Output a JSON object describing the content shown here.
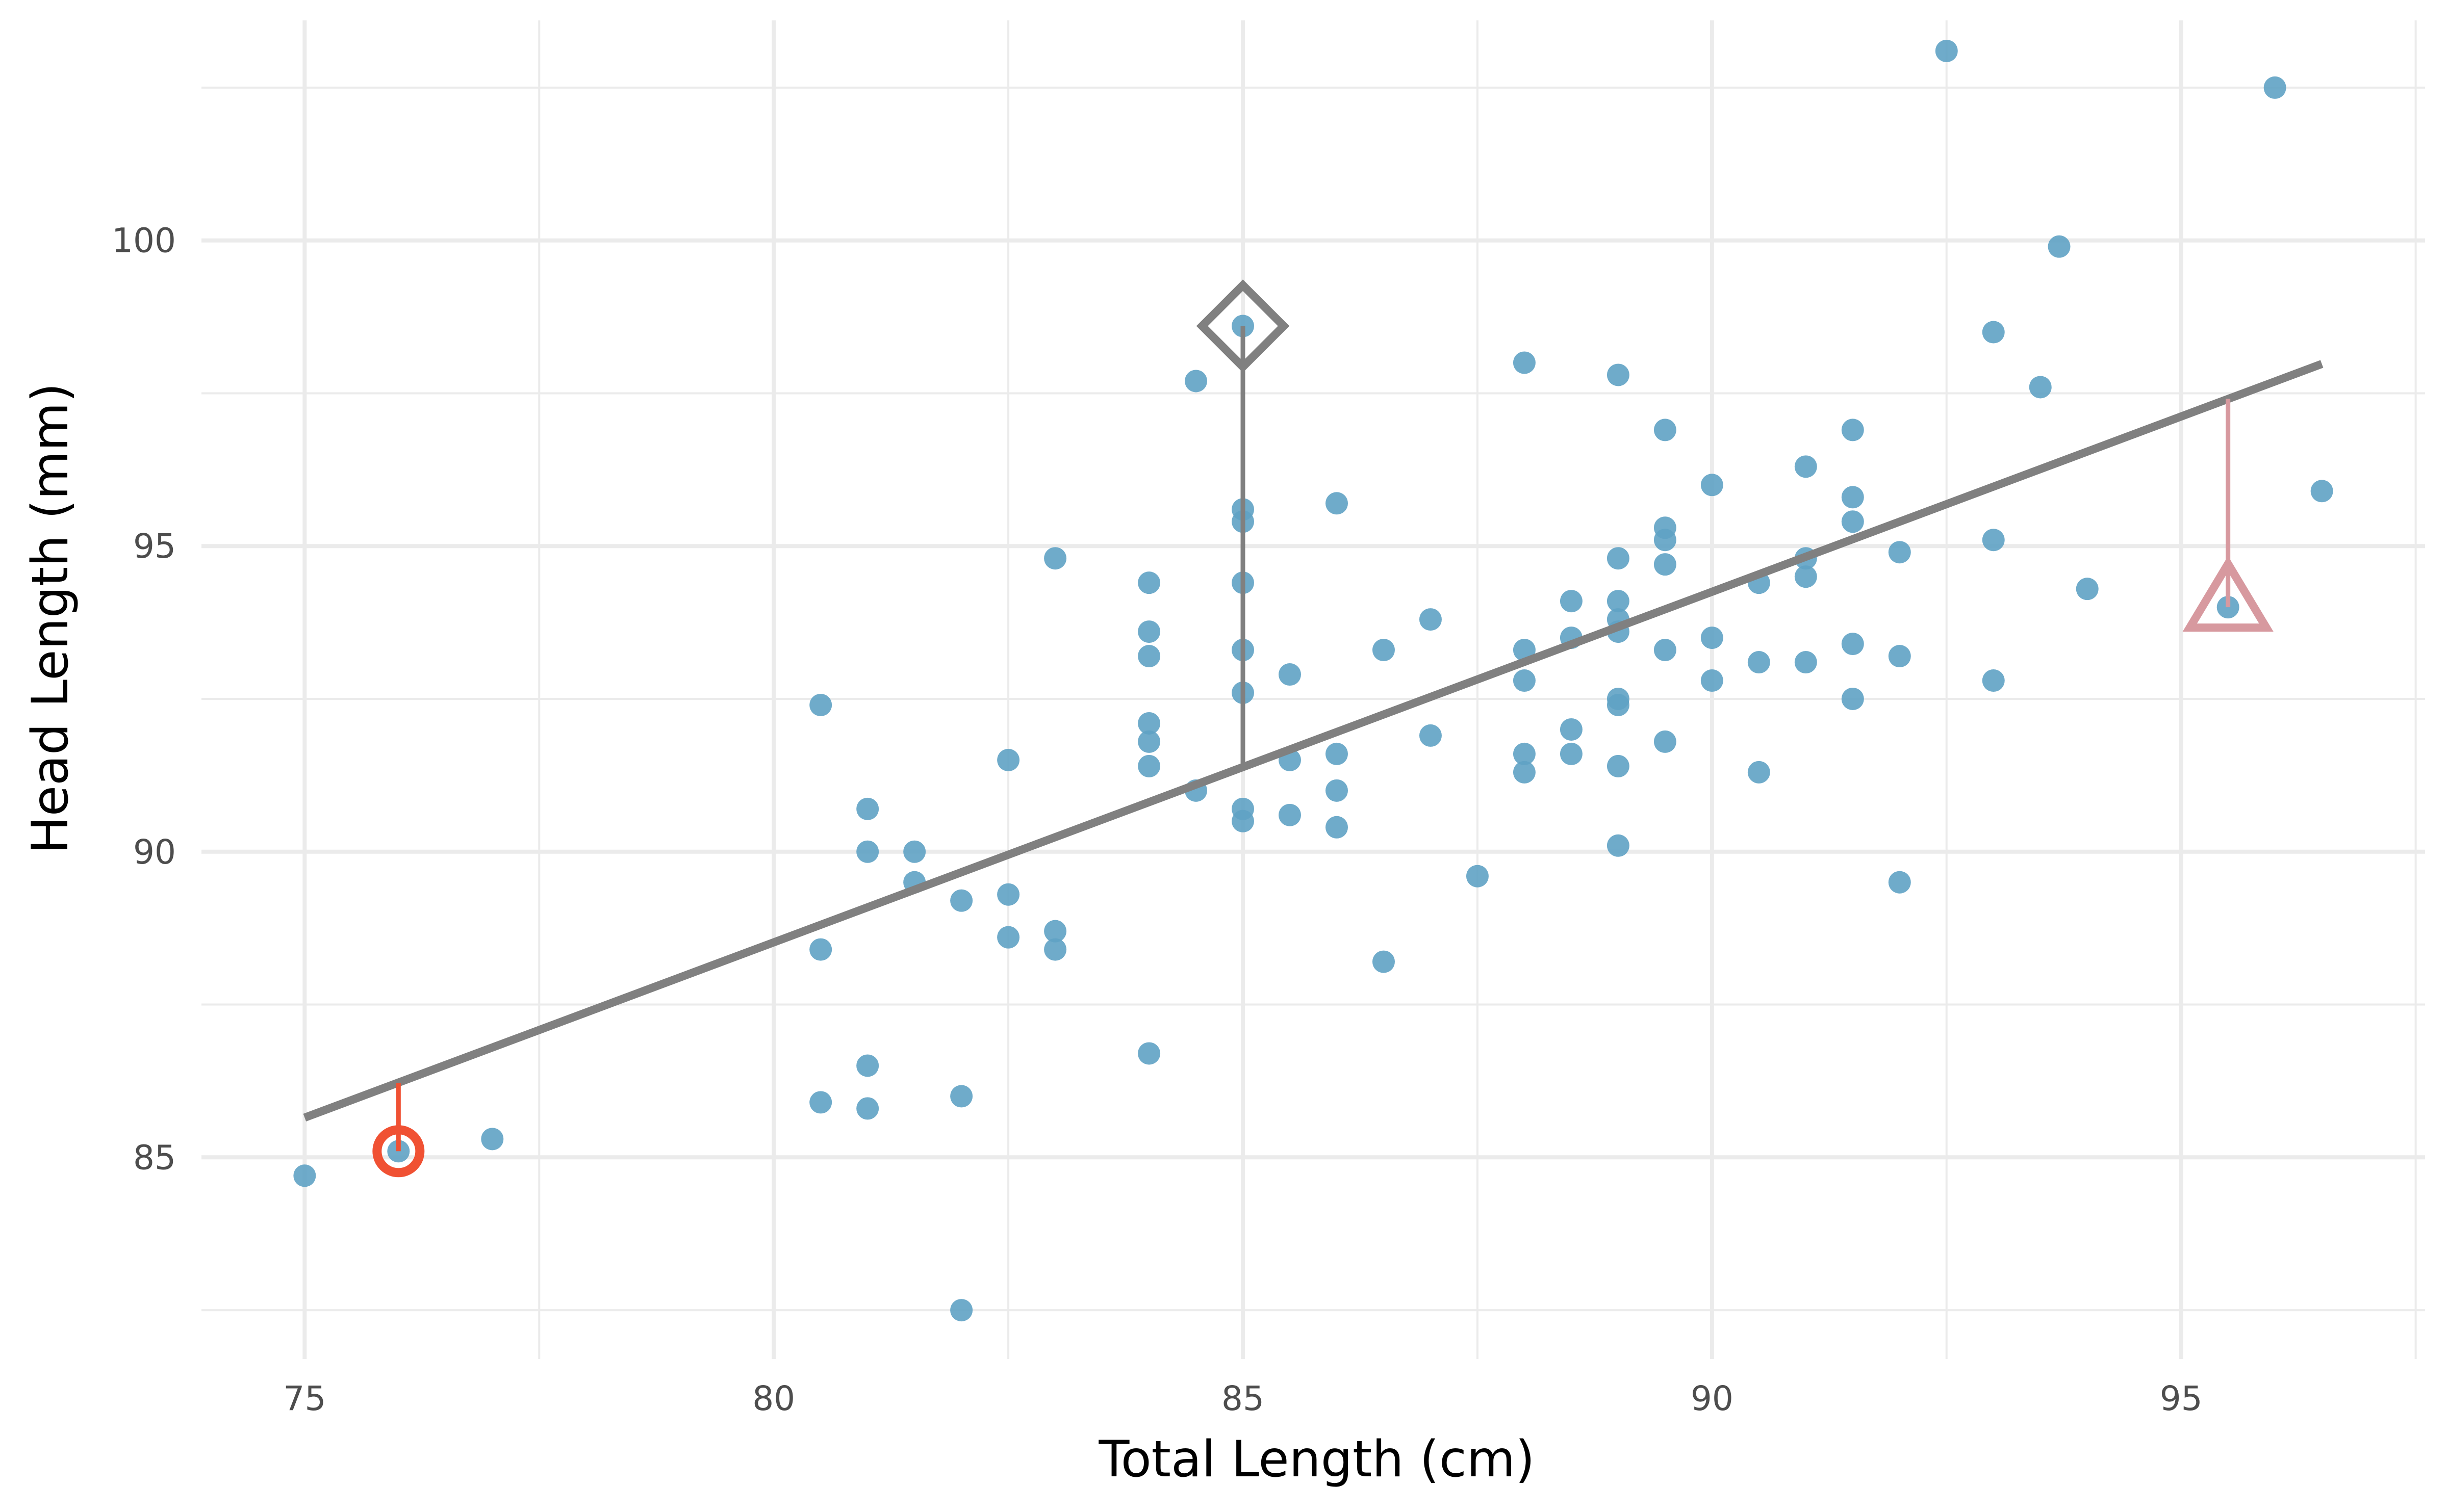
{
  "chart_data": {
    "type": "scatter",
    "title": "",
    "xlabel": "Total Length (cm)",
    "ylabel": "Head Length (mm)",
    "xlim": [
      73.9,
      97.6
    ],
    "ylim": [
      81.7,
      103.6
    ],
    "x_ticks": [
      75,
      80,
      85,
      90,
      95
    ],
    "x_minor_ticks": [
      77.5,
      82.5,
      87.5,
      92.5,
      97.5
    ],
    "y_ticks": [
      85,
      90,
      95,
      100
    ],
    "y_minor_ticks": [
      82.5,
      87.5,
      92.5,
      97.5,
      102.5
    ],
    "x_tick_labels": [
      "75",
      "80",
      "85",
      "90",
      "95"
    ],
    "y_tick_labels": [
      "85",
      "90",
      "95",
      "100"
    ],
    "grid": true,
    "legend": "none",
    "point_color": "#5fa2c4",
    "points": [
      [
        75,
        84.7
      ],
      [
        76,
        85.1
      ],
      [
        77,
        85.3
      ],
      [
        80.5,
        92.4
      ],
      [
        80.5,
        88.4
      ],
      [
        80.5,
        85.9
      ],
      [
        81,
        90.7
      ],
      [
        81,
        90.0
      ],
      [
        81,
        86.5
      ],
      [
        81,
        85.8
      ],
      [
        81.5,
        90.0
      ],
      [
        81.5,
        89.5
      ],
      [
        82,
        89.2
      ],
      [
        82,
        86.0
      ],
      [
        82,
        82.5
      ],
      [
        82.5,
        91.5
      ],
      [
        82.5,
        89.3
      ],
      [
        82.5,
        88.6
      ],
      [
        83,
        94.8
      ],
      [
        83,
        88.7
      ],
      [
        83,
        88.4
      ],
      [
        84,
        94.4
      ],
      [
        84,
        93.6
      ],
      [
        84,
        93.2
      ],
      [
        84,
        92.1
      ],
      [
        84,
        91.8
      ],
      [
        84,
        91.4
      ],
      [
        84,
        86.7
      ],
      [
        84.5,
        97.7
      ],
      [
        84.5,
        91.0
      ],
      [
        85,
        98.6
      ],
      [
        85,
        95.6
      ],
      [
        85,
        95.4
      ],
      [
        85,
        94.4
      ],
      [
        85,
        93.3
      ],
      [
        85,
        92.6
      ],
      [
        85,
        90.7
      ],
      [
        85,
        90.5
      ],
      [
        85.5,
        92.9
      ],
      [
        85.5,
        91.5
      ],
      [
        85.5,
        90.6
      ],
      [
        86,
        95.7
      ],
      [
        86,
        91.6
      ],
      [
        86,
        91.0
      ],
      [
        86,
        90.4
      ],
      [
        86.5,
        93.3
      ],
      [
        86.5,
        88.2
      ],
      [
        87,
        93.8
      ],
      [
        87,
        91.9
      ],
      [
        87.5,
        89.6
      ],
      [
        88,
        98.0
      ],
      [
        88,
        93.3
      ],
      [
        88,
        92.8
      ],
      [
        88,
        91.6
      ],
      [
        88,
        91.3
      ],
      [
        88.5,
        94.1
      ],
      [
        88.5,
        93.5
      ],
      [
        88.5,
        92.0
      ],
      [
        88.5,
        91.6
      ],
      [
        89,
        97.8
      ],
      [
        89,
        94.8
      ],
      [
        89,
        94.1
      ],
      [
        89,
        93.8
      ],
      [
        89,
        93.6
      ],
      [
        89,
        92.5
      ],
      [
        89,
        92.4
      ],
      [
        89,
        91.4
      ],
      [
        89,
        90.1
      ],
      [
        89.5,
        96.9
      ],
      [
        89.5,
        95.3
      ],
      [
        89.5,
        95.1
      ],
      [
        89.5,
        94.7
      ],
      [
        89.5,
        93.3
      ],
      [
        89.5,
        91.8
      ],
      [
        90,
        96.0
      ],
      [
        90,
        93.5
      ],
      [
        90,
        92.8
      ],
      [
        90.5,
        94.4
      ],
      [
        90.5,
        93.1
      ],
      [
        90.5,
        91.3
      ],
      [
        91,
        96.3
      ],
      [
        91,
        94.8
      ],
      [
        91,
        94.5
      ],
      [
        91,
        93.1
      ],
      [
        91.5,
        96.9
      ],
      [
        91.5,
        95.8
      ],
      [
        91.5,
        95.4
      ],
      [
        91.5,
        93.4
      ],
      [
        91.5,
        92.5
      ],
      [
        92,
        94.9
      ],
      [
        92,
        93.2
      ],
      [
        92,
        89.5
      ],
      [
        92.5,
        103.1
      ],
      [
        93,
        98.5
      ],
      [
        93,
        95.1
      ],
      [
        93,
        92.8
      ],
      [
        93.5,
        97.6
      ],
      [
        93.7,
        99.9
      ],
      [
        94,
        94.3
      ],
      [
        95.5,
        94.0
      ],
      [
        96,
        102.5
      ],
      [
        96.5,
        95.9
      ]
    ],
    "regression_line": {
      "x": [
        75,
        96.5
      ],
      "y": [
        85.65,
        97.98
      ],
      "color": "#808080"
    },
    "highlights": [
      {
        "shape": "circle",
        "x": 76,
        "y": 85.1,
        "line_to_y": 86.22,
        "color": "#f05133"
      },
      {
        "shape": "diamond",
        "x": 85,
        "y": 98.6,
        "line_to_y": 91.39,
        "color": "#808080"
      },
      {
        "shape": "triangle",
        "x": 95.5,
        "y": 94.0,
        "line_to_y": 97.41,
        "color": "#d7999f"
      }
    ]
  }
}
